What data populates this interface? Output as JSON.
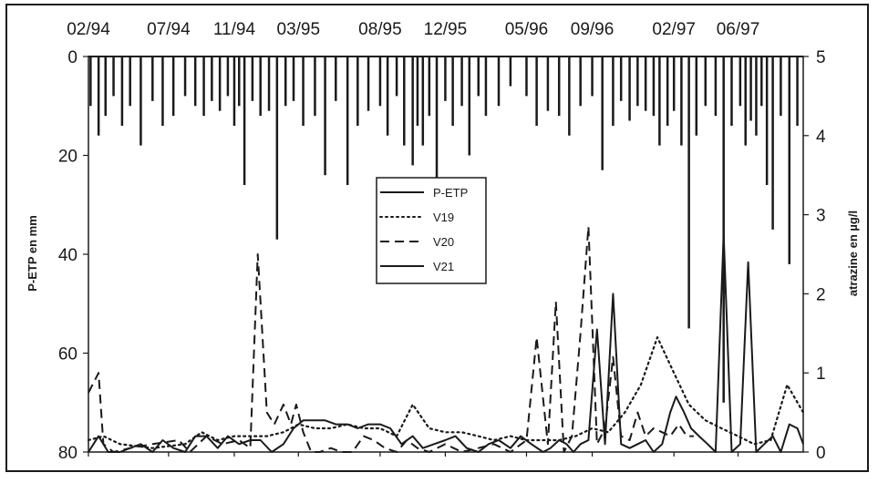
{
  "chart_data": {
    "type": "line",
    "title": "",
    "x_tick_labels": [
      "02/94",
      "07/94",
      "11/94",
      "03/95",
      "08/95",
      "12/95",
      "05/96",
      "09/96",
      "02/97",
      "06/97"
    ],
    "xlim": [
      "1994-02",
      "1997-10"
    ],
    "left_axis": {
      "label": "P-ETP en mm",
      "ticks": [
        "0",
        "20",
        "40",
        "60",
        "80"
      ],
      "range": [
        0,
        80
      ],
      "inverted": true
    },
    "right_axis": {
      "label": "atrazine en µg/l",
      "ticks": [
        "0",
        "1",
        "2",
        "3",
        "4",
        "5"
      ],
      "range": [
        0,
        5
      ]
    },
    "legend": {
      "position": "center",
      "entries": [
        "P-ETP",
        "V19",
        "V20",
        "V21"
      ]
    },
    "series": [
      {
        "name": "P-ETP",
        "axis": "left",
        "style": "bars",
        "x": [
          "1994-02-05",
          "1994-02-20",
          "1994-03-05",
          "1994-03-20",
          "1994-04-05",
          "1994-04-20",
          "1994-05-10",
          "1994-06-01",
          "1994-06-20",
          "1994-07-10",
          "1994-08-01",
          "1994-08-20",
          "1994-09-05",
          "1994-09-20",
          "1994-10-05",
          "1994-10-20",
          "1994-11-01",
          "1994-11-10",
          "1994-11-20",
          "1994-12-05",
          "1994-12-20",
          "1995-01-05",
          "1995-01-20",
          "1995-02-05",
          "1995-02-20",
          "1995-03-10",
          "1995-04-01",
          "1995-04-20",
          "1995-05-10",
          "1995-06-01",
          "1995-06-20",
          "1995-07-10",
          "1995-08-01",
          "1995-08-15",
          "1995-09-01",
          "1995-09-15",
          "1995-10-01",
          "1995-10-10",
          "1995-10-20",
          "1995-11-01",
          "1995-11-15",
          "1995-12-01",
          "1995-12-15",
          "1996-01-01",
          "1996-01-15",
          "1996-02-01",
          "1996-02-15",
          "1996-03-10",
          "1996-04-01",
          "1996-05-01",
          "1996-05-20",
          "1996-06-10",
          "1996-07-01",
          "1996-07-20",
          "1996-08-10",
          "1996-09-01",
          "1996-09-20",
          "1996-10-10",
          "1996-10-25",
          "1996-11-10",
          "1996-11-25",
          "1996-12-10",
          "1996-12-25",
          "1997-01-05",
          "1997-01-20",
          "1997-02-01",
          "1997-02-15",
          "1997-03-01",
          "1997-03-15",
          "1997-04-01",
          "1997-04-20",
          "1997-05-05",
          "1997-05-20",
          "1997-06-05",
          "1997-06-15",
          "1997-06-25",
          "1997-07-05",
          "1997-07-15",
          "1997-07-25",
          "1997-08-05",
          "1997-08-20",
          "1997-09-05",
          "1997-09-20"
        ],
        "values": [
          10,
          16,
          12,
          8,
          14,
          10,
          18,
          9,
          14,
          12,
          8,
          10,
          12,
          9,
          11,
          8,
          14,
          10,
          26,
          9,
          12,
          11,
          37,
          10,
          9,
          14,
          12,
          24,
          9,
          26,
          14,
          11,
          10,
          16,
          8,
          18,
          22,
          14,
          18,
          12,
          32,
          9,
          14,
          10,
          20,
          8,
          12,
          10,
          6,
          8,
          14,
          11,
          12,
          16,
          10,
          8,
          23,
          14,
          9,
          13,
          10,
          11,
          12,
          18,
          14,
          11,
          18,
          55,
          16,
          10,
          12,
          70,
          14,
          10,
          18,
          13,
          16,
          10,
          26,
          35,
          12,
          42,
          14
        ]
      },
      {
        "name": "V19",
        "axis": "right",
        "style": "dotted",
        "x": [
          "1994-02",
          "1994-03",
          "1994-04",
          "1994-06",
          "1994-08",
          "1994-09",
          "1994-10",
          "1994-11",
          "1994-12",
          "1995-01",
          "1995-02",
          "1995-03",
          "1995-04",
          "1995-05",
          "1995-06",
          "1995-07",
          "1995-08",
          "1995-09",
          "1995-10",
          "1995-11",
          "1995-12",
          "1996-01",
          "1996-02",
          "1996-03",
          "1996-04",
          "1996-05",
          "1996-06",
          "1996-07",
          "1996-08",
          "1996-09",
          "1996-10",
          "1996-11",
          "1996-12",
          "1997-01",
          "1997-02",
          "1997-03",
          "1997-04",
          "1997-05",
          "1997-06",
          "1997-07",
          "1997-08",
          "1997-09",
          "1997-10"
        ],
        "values": [
          0.15,
          0.2,
          0.1,
          0.05,
          0.1,
          0.25,
          0.15,
          0.2,
          0.2,
          0.2,
          0.25,
          0.35,
          0.3,
          0.3,
          0.35,
          0.3,
          0.3,
          0.2,
          0.6,
          0.3,
          0.25,
          0.25,
          0.2,
          0.15,
          0.2,
          0.15,
          0.15,
          0.15,
          0.2,
          0.3,
          0.25,
          0.5,
          0.85,
          1.45,
          1.0,
          0.6,
          0.4,
          0.3,
          0.2,
          0.1,
          0.15,
          0.85,
          0.5
        ]
      },
      {
        "name": "V20",
        "axis": "right",
        "style": "dashed",
        "x": [
          "1994-02-01",
          "1994-02-20",
          "1994-03-01",
          "1994-03-20",
          "1994-04-20",
          "1994-06-01",
          "1994-07-20",
          "1994-08-10",
          "1994-09-10",
          "1994-10-10",
          "1994-11-10",
          "1994-12-01",
          "1994-12-15",
          "1995-01-01",
          "1995-01-15",
          "1995-02-01",
          "1995-02-15",
          "1995-02-25",
          "1995-03-10",
          "1995-03-25",
          "1995-04-10",
          "1995-05-01",
          "1995-05-20",
          "1995-06-10",
          "1995-07-01",
          "1995-07-20",
          "1995-08-10",
          "1995-09-01",
          "1995-09-20",
          "1995-10-10",
          "1995-11-01",
          "1995-12-01",
          "1996-01-01",
          "1996-02-01",
          "1996-03-01",
          "1996-04-01",
          "1996-05-01",
          "1996-05-20",
          "1996-06-10",
          "1996-06-25",
          "1996-07-10",
          "1996-07-25",
          "1996-08-10",
          "1996-08-25",
          "1996-09-10",
          "1996-09-25",
          "1996-10-10",
          "1996-10-25",
          "1996-11-10",
          "1996-11-25",
          "1996-12-10",
          "1996-12-25",
          "1997-01-10",
          "1997-01-25",
          "1997-02-10",
          "1997-02-25",
          "1997-03-10"
        ],
        "values": [
          0.75,
          1.0,
          0.1,
          0.0,
          0.05,
          0.1,
          0.15,
          0.0,
          0.2,
          0.1,
          0.15,
          0.05,
          2.5,
          0.5,
          0.35,
          0.6,
          0.35,
          0.6,
          0.25,
          0.0,
          0.0,
          0.05,
          0.0,
          0.0,
          0.2,
          0.15,
          0.05,
          0.0,
          0.15,
          0.05,
          0.0,
          0.1,
          0.0,
          0.05,
          0.1,
          0.0,
          0.15,
          1.45,
          0.1,
          1.9,
          0.0,
          0.2,
          1.5,
          2.85,
          0.1,
          0.3,
          1.2,
          0.2,
          0.15,
          0.5,
          0.2,
          0.3,
          0.25,
          0.2,
          0.35,
          0.2,
          0.2
        ]
      },
      {
        "name": "V21",
        "axis": "right",
        "style": "solid",
        "x": [
          "1994-02-01",
          "1994-02-20",
          "1994-03-10",
          "1994-04-01",
          "1994-04-20",
          "1994-05-10",
          "1994-06-01",
          "1994-06-20",
          "1994-07-10",
          "1994-08-01",
          "1994-08-20",
          "1994-09-10",
          "1994-10-01",
          "1994-10-20",
          "1994-11-10",
          "1994-12-01",
          "1994-12-20",
          "1995-01-10",
          "1995-02-01",
          "1995-02-20",
          "1995-03-10",
          "1995-04-01",
          "1995-04-20",
          "1995-05-10",
          "1995-06-01",
          "1995-06-20",
          "1995-07-10",
          "1995-08-01",
          "1995-08-20",
          "1995-09-10",
          "1995-10-01",
          "1995-10-20",
          "1995-11-10",
          "1995-12-01",
          "1995-12-20",
          "1996-01-10",
          "1996-02-01",
          "1996-02-20",
          "1996-03-10",
          "1996-04-01",
          "1996-04-20",
          "1996-05-10",
          "1996-06-01",
          "1996-06-15",
          "1996-07-01",
          "1996-07-15",
          "1996-07-28",
          "1996-08-10",
          "1996-08-25",
          "1996-09-10",
          "1996-09-25",
          "1996-10-10",
          "1996-10-25",
          "1996-11-10",
          "1996-11-25",
          "1996-12-10",
          "1996-12-25",
          "1997-01-10",
          "1997-01-25",
          "1997-02-05",
          "1997-02-20",
          "1997-03-05",
          "1997-03-20",
          "1997-04-05",
          "1997-04-20",
          "1997-05-05",
          "1997-05-20",
          "1997-06-05",
          "1997-06-20",
          "1997-07-05",
          "1997-07-20",
          "1997-08-05",
          "1997-08-20",
          "1997-09-05",
          "1997-09-20",
          "1997-10-01"
        ],
        "values": [
          0.0,
          0.2,
          0.0,
          0.0,
          0.05,
          0.1,
          0.0,
          0.15,
          0.05,
          0.0,
          0.2,
          0.2,
          0.05,
          0.2,
          0.1,
          0.15,
          0.15,
          0.0,
          0.1,
          0.3,
          0.4,
          0.4,
          0.4,
          0.35,
          0.35,
          0.3,
          0.35,
          0.35,
          0.3,
          0.1,
          0.2,
          0.05,
          0.1,
          0.15,
          0.2,
          0.05,
          0.0,
          0.1,
          0.15,
          0.05,
          0.2,
          0.1,
          0.0,
          0.05,
          0.15,
          0.1,
          0.0,
          0.1,
          0.15,
          1.55,
          0.1,
          2.0,
          0.1,
          0.05,
          0.1,
          0.15,
          0.0,
          0.1,
          0.5,
          0.7,
          0.5,
          0.3,
          0.2,
          0.1,
          0.0,
          2.75,
          0.0,
          0.1,
          2.4,
          0.0,
          0.1,
          0.2,
          0.0,
          0.35,
          0.3,
          0.1
        ]
      }
    ]
  }
}
